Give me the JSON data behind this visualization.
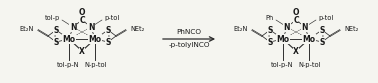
{
  "background_color": "#f5f5f0",
  "arrow_text_line1": "PhNCO",
  "arrow_text_line2": "-p-tolylNCO",
  "left_labels": {
    "top_left": "tol-p",
    "top_right": "p-tol",
    "left_net2": "Et₂N",
    "right_net2": "NEt₂",
    "bottom_left": "tol-p-N",
    "bottom_right": "N-p-tol"
  },
  "right_labels": {
    "top_left": "Ph",
    "top_right": "p-tol",
    "left_net2": "Et₂N",
    "right_net2": "NEt₂",
    "bottom_left": "tol-p-N",
    "bottom_right": "N-p-tol"
  },
  "font_size_small": 4.8,
  "font_size_atom": 5.5,
  "font_size_arrow": 5.2,
  "line_color": "#2a2a2a",
  "text_color": "#1a1a1a"
}
